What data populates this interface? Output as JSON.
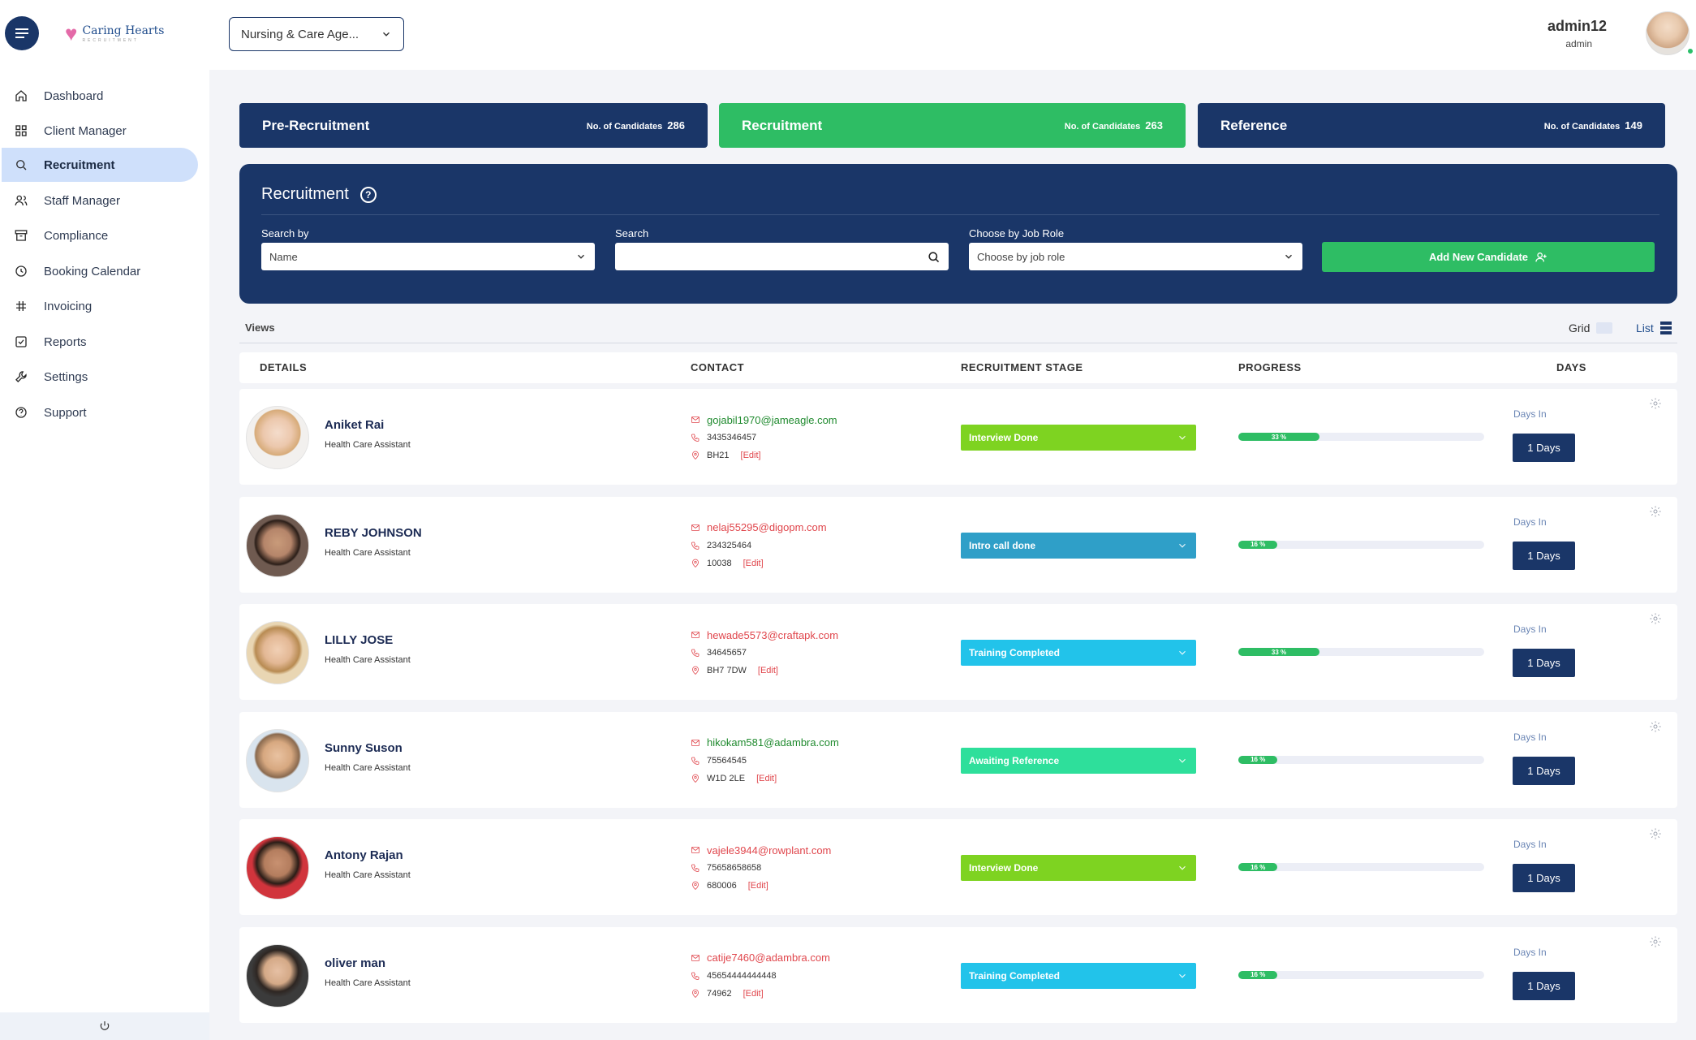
{
  "header": {
    "logo_name": "Caring Hearts",
    "logo_sub": "RECRUITMENT",
    "agency_select": "Nursing & Care Age...",
    "user_name": "admin12",
    "user_role": "admin"
  },
  "sidebar": {
    "items": [
      {
        "label": "Dashboard",
        "icon": "home-icon"
      },
      {
        "label": "Client Manager",
        "icon": "grid-icon"
      },
      {
        "label": "Recruitment",
        "icon": "search-icon",
        "active": true
      },
      {
        "label": "Staff Manager",
        "icon": "users-icon"
      },
      {
        "label": "Compliance",
        "icon": "archive-icon"
      },
      {
        "label": "Booking Calendar",
        "icon": "clock-icon"
      },
      {
        "label": "Invoicing",
        "icon": "hash-icon"
      },
      {
        "label": "Reports",
        "icon": "checkbox-icon"
      },
      {
        "label": "Settings",
        "icon": "wrench-icon"
      },
      {
        "label": "Support",
        "icon": "help-circle-icon"
      }
    ],
    "footer_icon": "power-icon"
  },
  "stages": [
    {
      "title": "Pre-Recruitment",
      "count_label": "No. of Candidates",
      "count": "286",
      "color": "#1a3668"
    },
    {
      "title": "Recruitment",
      "count_label": "No. of Candidates",
      "count": "263",
      "color": "#2ebd64"
    },
    {
      "title": "Reference",
      "count_label": "No. of Candidates",
      "count": "149",
      "color": "#1a3668"
    }
  ],
  "filter": {
    "title": "Recruitment",
    "search_by_label": "Search by",
    "search_by_value": "Name",
    "search_label": "Search",
    "search_value": "",
    "job_role_label": "Choose by Job Role",
    "job_role_value": "Choose by job role",
    "add_button": "Add New Candidate"
  },
  "views": {
    "label": "Views",
    "grid_label": "Grid",
    "list_label": "List"
  },
  "table": {
    "headers": [
      "DETAILS",
      "CONTACT",
      "RECRUITMENT STAGE",
      "PROGRESS",
      "DAYS"
    ],
    "edit_label": "[Edit]",
    "days_in_label": "Days In",
    "rows": [
      {
        "name": "Aniket Rai",
        "role": "Health Care Assistant",
        "email": "gojabil1970@jameagle.com",
        "email_color": "#1f8a2e",
        "phone": "3435346457",
        "postcode": "BH21",
        "stage": "Interview Done",
        "stage_color": "#7ed321",
        "progress": 33,
        "progress_label": "33 %",
        "days": "1 Days"
      },
      {
        "name": "REBY JOHNSON",
        "role": "Health Care Assistant",
        "email": "nelaj55295@digopm.com",
        "email_color": "#e0464c",
        "phone": "234325464",
        "postcode": "10038",
        "stage": "Intro call done",
        "stage_color": "#2f9fc8",
        "progress": 16,
        "progress_label": "16 %",
        "days": "1 Days"
      },
      {
        "name": "LILLY JOSE",
        "role": "Health Care Assistant",
        "email": "hewade5573@craftapk.com",
        "email_color": "#e0464c",
        "phone": "34645657",
        "postcode": "BH7 7DW",
        "stage": "Training Completed",
        "stage_color": "#22c3ea",
        "progress": 33,
        "progress_label": "33 %",
        "days": "1 Days"
      },
      {
        "name": "Sunny Suson",
        "role": "Health Care Assistant",
        "email": "hikokam581@adambra.com",
        "email_color": "#1f8a2e",
        "phone": "75564545",
        "postcode": "W1D 2LE",
        "stage": "Awaiting Reference",
        "stage_color": "#2edf9b",
        "progress": 16,
        "progress_label": "16 %",
        "days": "1 Days"
      },
      {
        "name": "Antony Rajan",
        "role": "Health Care Assistant",
        "email": "vajele3944@rowplant.com",
        "email_color": "#e0464c",
        "phone": "75658658658",
        "postcode": "680006",
        "stage": "Interview Done",
        "stage_color": "#7ed321",
        "progress": 16,
        "progress_label": "16 %",
        "days": "1 Days"
      },
      {
        "name": "oliver man",
        "role": "Health Care Assistant",
        "email": "catije7460@adambra.com",
        "email_color": "#e0464c",
        "phone": "45654444444448",
        "postcode": "74962",
        "stage": "Training Completed",
        "stage_color": "#22c3ea",
        "progress": 16,
        "progress_label": "16 %",
        "days": "1 Days"
      }
    ]
  }
}
